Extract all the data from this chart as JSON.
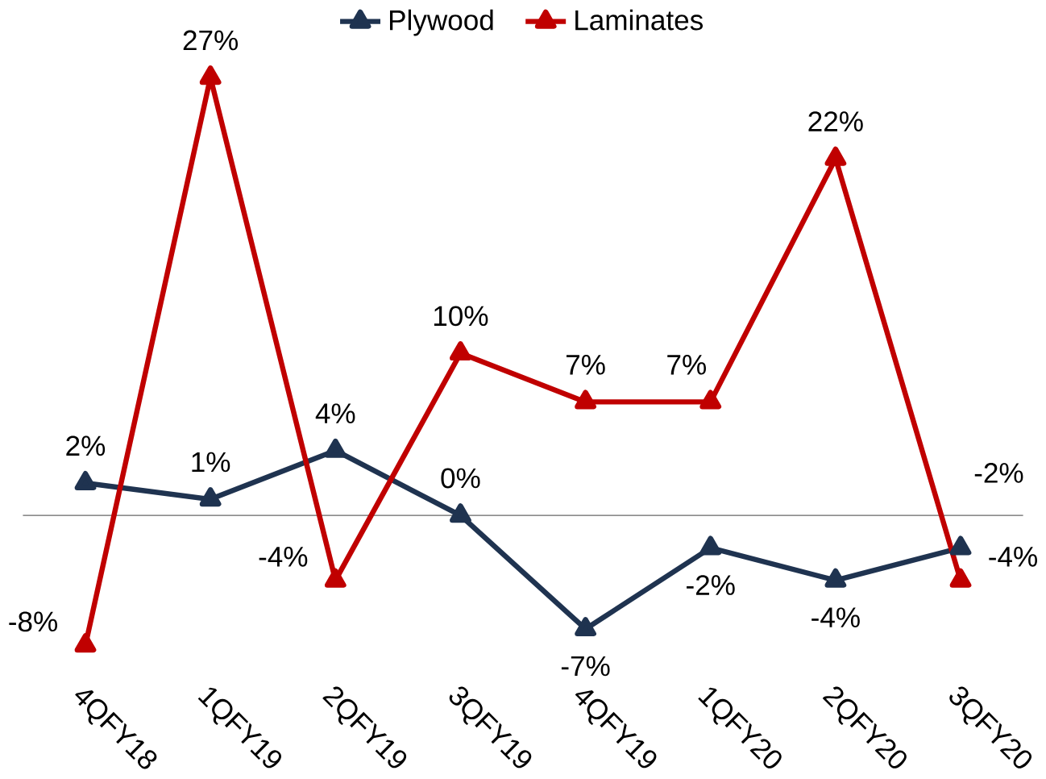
{
  "chart_data": {
    "type": "line",
    "categories": [
      "4QFY18",
      "1QFY19",
      "2QFY19",
      "3QFY19",
      "4QFY19",
      "1QFY20",
      "2QFY20",
      "3QFY20"
    ],
    "series": [
      {
        "name": "Plywood",
        "color": "#1f3350",
        "values": [
          2,
          1,
          4,
          0,
          -7,
          -2,
          -4,
          -2
        ],
        "value_labels": [
          "2%",
          "1%",
          "4%",
          "0%",
          "-7%",
          "-2%",
          "-4%",
          "-2%"
        ]
      },
      {
        "name": "Laminates",
        "color": "#c00000",
        "values": [
          -8,
          27,
          -4,
          10,
          7,
          7,
          22,
          -4
        ],
        "value_labels": [
          "-8%",
          "27%",
          "-4%",
          "10%",
          "7%",
          "7%",
          "22%",
          "-4%"
        ]
      }
    ],
    "legend": "top",
    "marker": "triangle",
    "line_style": "solid"
  }
}
